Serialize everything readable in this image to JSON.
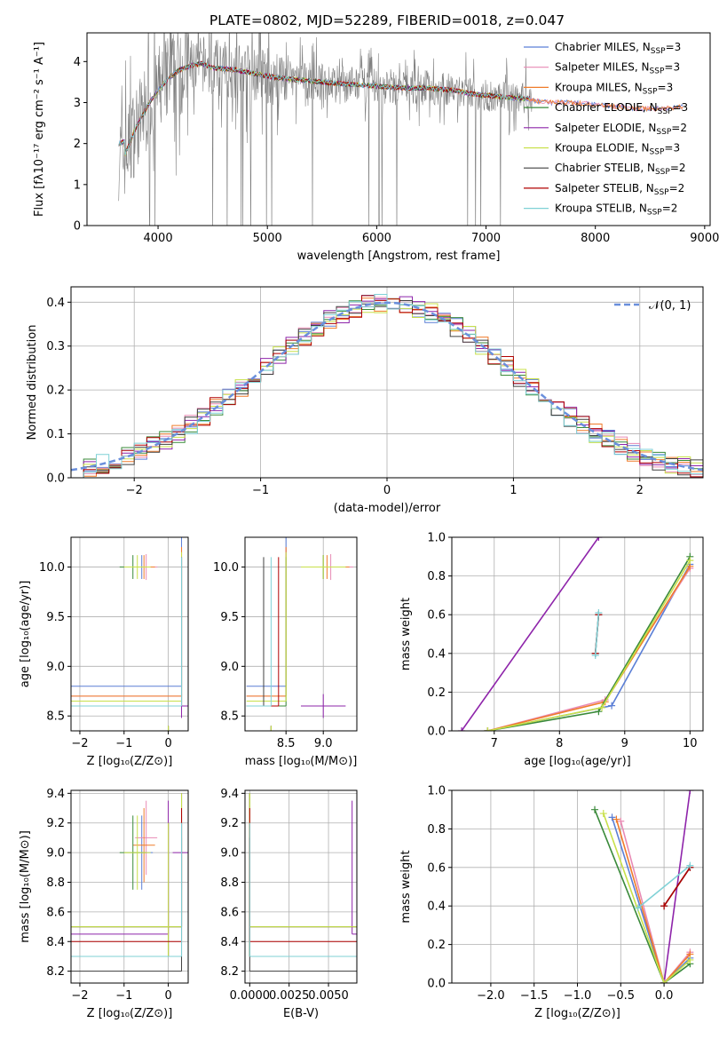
{
  "title": "PLATE=0802, MJD=52289, FIBERID=0018, z=0.047",
  "colors": {
    "Chabrier MILES": "#5b7fd6",
    "Salpeter MILES": "#e88ab4",
    "Kroupa MILES": "#f07b2a",
    "Chabrier ELODIE": "#3a8a3a",
    "Salpeter ELODIE": "#8e24aa",
    "Kroupa ELODIE": "#c8e04a",
    "Chabrier STELIB": "#404040",
    "Salpeter STELIB": "#b00000",
    "Kroupa STELIB": "#7fd1d6",
    "data": "#808080",
    "normal": "#6a8fdc"
  },
  "chart_data": [
    {
      "id": "spectrum",
      "type": "line",
      "xlabel": "wavelength [Angstrom, rest frame]",
      "ylabel": "Flux [fλ10⁻¹⁷ erg cm⁻² s⁻¹ A⁻¹]",
      "xlim": [
        3350,
        9050
      ],
      "ylim": [
        0,
        4.7
      ],
      "xticks": [
        "4000",
        "5000",
        "6000",
        "7000",
        "8000",
        "9000"
      ],
      "yticks": [
        "0",
        "1",
        "2",
        "3",
        "4"
      ],
      "legend": [
        {
          "name": "Chabrier MILES",
          "nssp": "3"
        },
        {
          "name": "Salpeter MILES",
          "nssp": "3"
        },
        {
          "name": "Kroupa MILES",
          "nssp": "3"
        },
        {
          "name": "Chabrier ELODIE",
          "nssp": "3"
        },
        {
          "name": "Salpeter ELODIE",
          "nssp": "2"
        },
        {
          "name": "Kroupa ELODIE",
          "nssp": "3"
        },
        {
          "name": "Chabrier STELIB",
          "nssp": "2"
        },
        {
          "name": "Salpeter STELIB",
          "nssp": "2"
        },
        {
          "name": "Kroupa STELIB",
          "nssp": "2"
        }
      ],
      "continuum": {
        "x": [
          3640,
          3700,
          3800,
          3900,
          4000,
          4100,
          4200,
          4300,
          4400,
          4500,
          4700,
          4900,
          5100,
          5300,
          5500,
          5700,
          5900,
          6100,
          6300,
          6500,
          6700,
          6900,
          7100,
          7300,
          7400
        ],
        "y": [
          1.7,
          1.75,
          2.4,
          2.9,
          3.3,
          3.6,
          3.8,
          3.9,
          3.95,
          3.85,
          3.8,
          3.7,
          3.6,
          3.55,
          3.5,
          3.45,
          3.42,
          3.38,
          3.35,
          3.35,
          3.3,
          3.2,
          3.15,
          3.1,
          3.1
        ]
      },
      "miles_tail": {
        "x": [
          7400,
          7600,
          7800,
          8000,
          8200,
          8400,
          8600,
          8800
        ],
        "y": [
          3.05,
          3.0,
          3.0,
          2.95,
          2.9,
          2.85,
          2.85,
          2.9
        ]
      }
    },
    {
      "id": "residuals",
      "type": "line",
      "xlabel": "(data-model)/error",
      "ylabel": "Normed distribution",
      "xlim": [
        -2.5,
        2.5
      ],
      "ylim": [
        0,
        0.435
      ],
      "xticks": [
        "−2",
        "−1",
        "0",
        "1",
        "2"
      ],
      "yticks": [
        "0.0",
        "0.1",
        "0.2",
        "0.3",
        "0.4"
      ],
      "legend_normal": "𝒩(0, 1)",
      "bin_width": 0.1
    },
    {
      "id": "age-vs-Z",
      "type": "scatter",
      "xlabel": "Z [log₁₀(Z/Z⊙)]",
      "ylabel": "age  [log₁₀(age/yr)]",
      "xlim": [
        -2.2,
        0.45
      ],
      "ylim": [
        8.35,
        10.3
      ],
      "xticks": [
        "−2",
        "−1",
        "0"
      ],
      "yticks": [
        "8.5",
        "9.0",
        "9.5",
        "10.0"
      ]
    },
    {
      "id": "age-vs-mass",
      "type": "scatter",
      "xlabel": "mass [log₁₀(M/M⊙)]",
      "xlim": [
        7.95,
        9.45
      ],
      "ylim": [
        8.35,
        10.3
      ],
      "xticks": [
        "8.5",
        "9.0"
      ],
      "yticks": [
        "8.5",
        "9.0",
        "9.5",
        "10.0"
      ]
    },
    {
      "id": "weight-vs-age",
      "type": "line",
      "xlabel": "age  [log₁₀(age/yr)]",
      "ylabel": "mass weight",
      "xlim": [
        6.35,
        10.2
      ],
      "ylim": [
        0,
        1.0
      ],
      "xticks": [
        "7",
        "8",
        "9",
        "10"
      ],
      "yticks": [
        "0.0",
        "0.2",
        "0.4",
        "0.6",
        "0.8",
        "1.0"
      ]
    },
    {
      "id": "mass-vs-Z",
      "type": "scatter",
      "xlabel": "Z [log₁₀(Z/Z⊙)]",
      "ylabel": "mass [log₁₀(M/M⊙)]",
      "xlim": [
        -2.2,
        0.45
      ],
      "ylim": [
        8.12,
        9.42
      ],
      "xticks": [
        "−2",
        "−1",
        "0"
      ],
      "yticks": [
        "8.2",
        "8.4",
        "8.6",
        "8.8",
        "9.0",
        "9.2",
        "9.4"
      ]
    },
    {
      "id": "mass-vs-EBV",
      "type": "scatter",
      "xlabel": "E(B-V)",
      "xlim": [
        -0.0003,
        0.0068
      ],
      "ylim": [
        8.12,
        9.42
      ],
      "xticks": [
        "0.0000",
        "0.0025",
        "0.0050"
      ],
      "yticks": [
        "8.2",
        "8.4",
        "8.6",
        "8.8",
        "9.0",
        "9.2",
        "9.4"
      ]
    },
    {
      "id": "weight-vs-Z",
      "type": "line",
      "xlabel": "Z [log₁₀(Z/Z⊙)]",
      "ylabel": "mass weight",
      "xlim": [
        -2.45,
        0.45
      ],
      "ylim": [
        0,
        1.0
      ],
      "xticks": [
        "−2.0",
        "−1.5",
        "−1.0",
        "−0.5",
        "0.0"
      ],
      "yticks": [
        "0.0",
        "0.2",
        "0.4",
        "0.6",
        "0.8",
        "1.0"
      ]
    }
  ],
  "models": [
    {
      "name": "Chabrier MILES",
      "ssp": [
        {
          "age": 10.0,
          "Z": -0.6,
          "mass": 9.0,
          "w": 0.86,
          "ea": 0.12,
          "ez": 0.25,
          "em": 0.1
        },
        {
          "age": 8.8,
          "Z": 0.3,
          "mass": 8.5,
          "w": 0.13
        },
        {
          "age": 6.9,
          "Z": 0.0,
          "mass": 8.3,
          "w": 0.0
        }
      ]
    },
    {
      "name": "Salpeter MILES",
      "ssp": [
        {
          "age": 10.0,
          "Z": -0.5,
          "mass": 9.1,
          "w": 0.84,
          "ea": 0.13,
          "ez": 0.25,
          "em": 0.1
        },
        {
          "age": 8.7,
          "Z": 0.3,
          "mass": 8.5,
          "w": 0.16
        },
        {
          "age": 6.9,
          "Z": 0.0,
          "mass": 8.3,
          "w": 0.0
        }
      ]
    },
    {
      "name": "Kroupa MILES",
      "ssp": [
        {
          "age": 10.0,
          "Z": -0.55,
          "mass": 9.05,
          "w": 0.85,
          "ea": 0.12,
          "ez": 0.25,
          "em": 0.1
        },
        {
          "age": 8.7,
          "Z": 0.3,
          "mass": 8.5,
          "w": 0.15
        },
        {
          "age": 6.9,
          "Z": 0.0,
          "mass": 8.3,
          "w": 0.0
        }
      ]
    },
    {
      "name": "Chabrier ELODIE",
      "ssp": [
        {
          "age": 10.0,
          "Z": -0.8,
          "mass": 9.0,
          "w": 0.9,
          "ea": 0.12,
          "ez": 0.3,
          "em": 0.1
        },
        {
          "age": 8.6,
          "Z": 0.3,
          "mass": 8.5,
          "w": 0.1
        },
        {
          "age": 6.9,
          "Z": 0.0,
          "mass": 8.3,
          "w": 0.0
        }
      ]
    },
    {
      "name": "Salpeter ELODIE",
      "ssp": [
        {
          "age": 8.6,
          "Z": 0.3,
          "mass": 9.0,
          "w": 1.0,
          "ea": 0.12,
          "ez": 0.2,
          "em": 0.1
        },
        {
          "age": 6.5,
          "Z": 0.0,
          "mass": 8.45,
          "w": 0.0
        }
      ]
    },
    {
      "name": "Kroupa ELODIE",
      "ssp": [
        {
          "age": 10.0,
          "Z": -0.7,
          "mass": 9.0,
          "w": 0.88,
          "ea": 0.12,
          "ez": 0.3,
          "em": 0.1
        },
        {
          "age": 8.65,
          "Z": 0.3,
          "mass": 8.5,
          "w": 0.12
        },
        {
          "age": 6.9,
          "Z": 0.0,
          "mass": 8.3,
          "w": 0.0
        }
      ]
    },
    {
      "name": "Chabrier STELIB",
      "ssp": [
        {
          "age": 8.55,
          "Z": 0.0,
          "mass": 8.55,
          "w": 0.4
        },
        {
          "age": 8.6,
          "Z": 0.3,
          "mass": 8.2,
          "w": 0.6
        }
      ]
    },
    {
      "name": "Salpeter STELIB",
      "ssp": [
        {
          "age": 8.55,
          "Z": 0.0,
          "mass": 8.55,
          "w": 0.4
        },
        {
          "age": 8.6,
          "Z": 0.3,
          "mass": 8.4,
          "w": 0.6
        }
      ]
    },
    {
      "name": "Kroupa STELIB",
      "ssp": [
        {
          "age": 8.55,
          "Z": -0.3,
          "mass": 8.55,
          "w": 0.39
        },
        {
          "age": 8.6,
          "Z": 0.3,
          "mass": 8.3,
          "w": 0.61
        }
      ]
    }
  ]
}
